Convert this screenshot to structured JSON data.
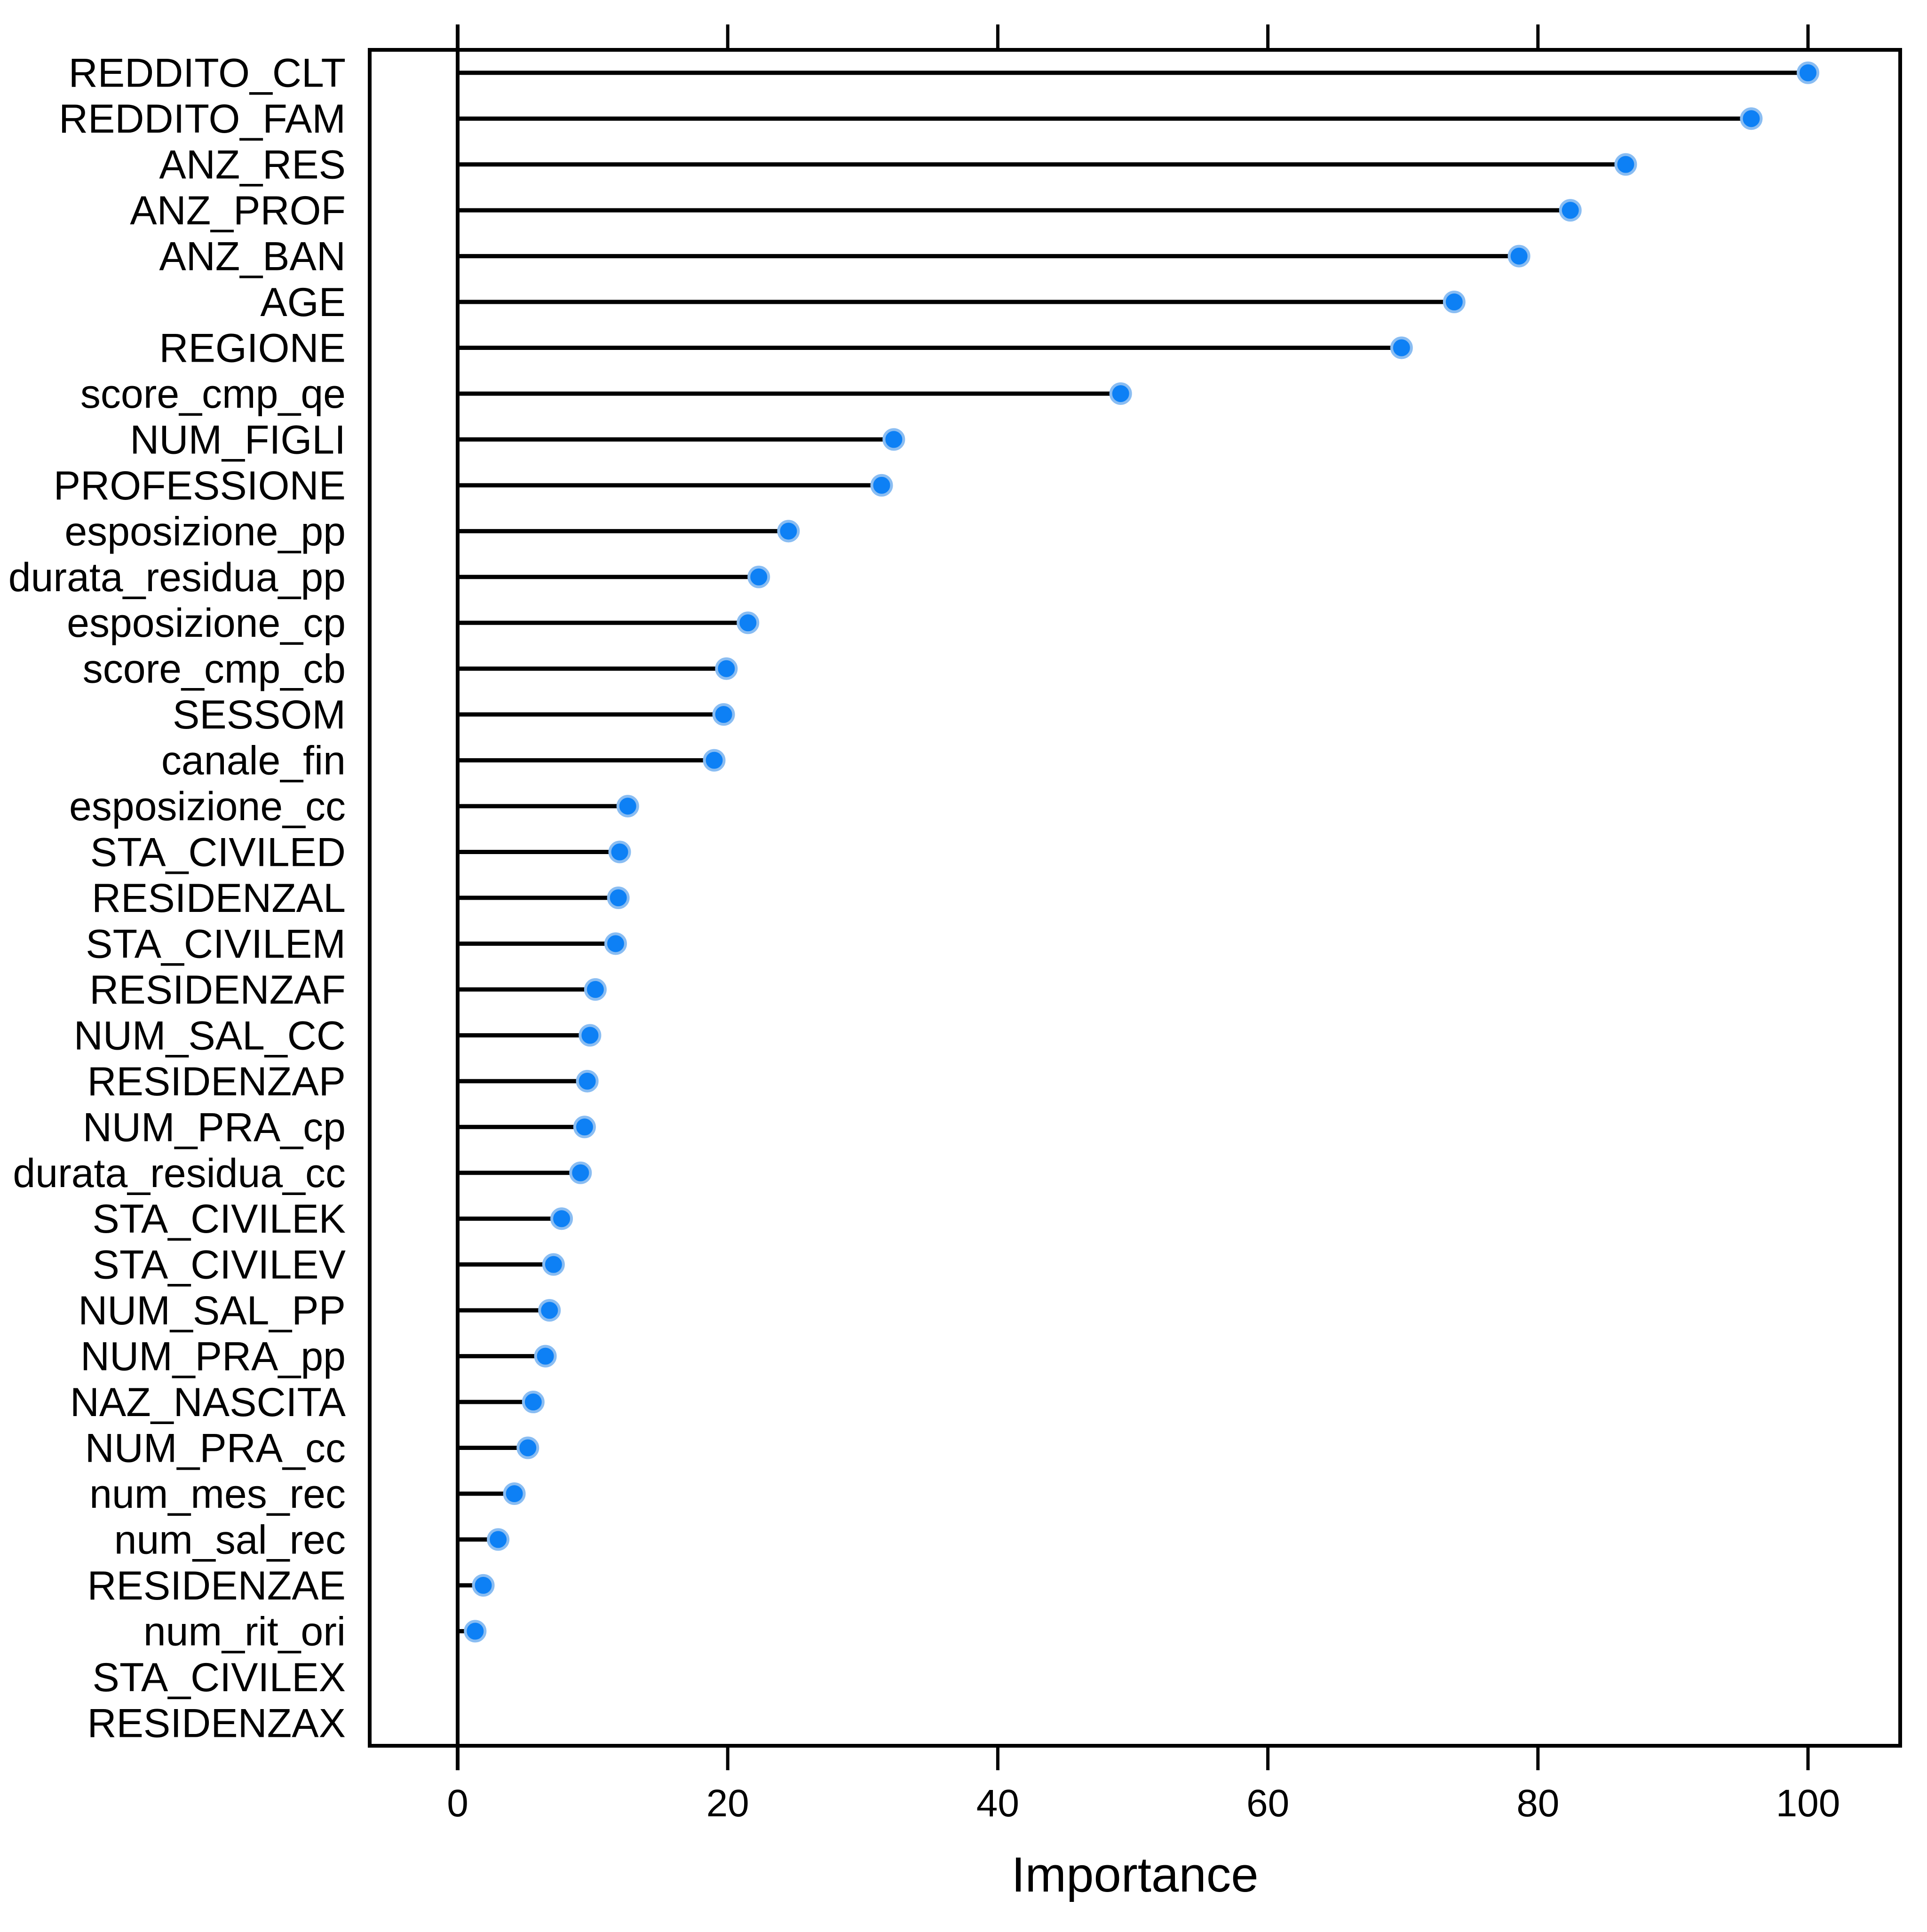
{
  "figure": {
    "background": "#ffffff",
    "frame_color": "#000000"
  },
  "chart_data": {
    "type": "scatter",
    "subtype": "dotplot-lollipop",
    "title": "",
    "xlabel": "Importance",
    "ylabel": "",
    "orientation": "horizontal",
    "grid": false,
    "legend": "none",
    "order": "top_to_bottom",
    "xlim": [
      -6.5,
      106.8
    ],
    "x_ticks": [
      0,
      20,
      40,
      60,
      80,
      100
    ],
    "dot_color": "#0d80f5",
    "dot_halo_color": "#8abdf2",
    "stem_color": "#000000",
    "axis_color": "#000000",
    "categories": [
      "REDDITO_CLT",
      "REDDITO_FAM",
      "ANZ_RES",
      "ANZ_PROF",
      "ANZ_BAN",
      "AGE",
      "REGIONE",
      "score_cmp_qe",
      "NUM_FIGLI",
      "PROFESSIONE",
      "esposizione_pp",
      "durata_residua_pp",
      "esposizione_cp",
      "score_cmp_cb",
      "SESSOM",
      "canale_fin",
      "esposizione_cc",
      "STA_CIVILED",
      "RESIDENZAL",
      "STA_CIVILEM",
      "RESIDENZAF",
      "NUM_SAL_CC",
      "RESIDENZAP",
      "NUM_PRA_cp",
      "durata_residua_cc",
      "STA_CIVILEK",
      "STA_CIVILEV",
      "NUM_SAL_PP",
      "NUM_PRA_pp",
      "NAZ_NASCITA",
      "NUM_PRA_cc",
      "num_mes_rec",
      "num_sal_rec",
      "RESIDENZAE",
      "num_rit_ori",
      "STA_CIVILEX",
      "RESIDENZAX"
    ],
    "values": [
      100,
      95.8,
      86.5,
      82.4,
      78.6,
      73.8,
      69.9,
      49.1,
      32.3,
      31.4,
      24.5,
      22.3,
      21.5,
      19.9,
      19.7,
      19.0,
      12.6,
      12.0,
      11.9,
      11.7,
      10.2,
      9.8,
      9.6,
      9.4,
      9.1,
      7.7,
      7.1,
      6.8,
      6.5,
      5.6,
      5.2,
      4.2,
      3.0,
      1.9,
      1.3,
      null,
      null
    ]
  }
}
